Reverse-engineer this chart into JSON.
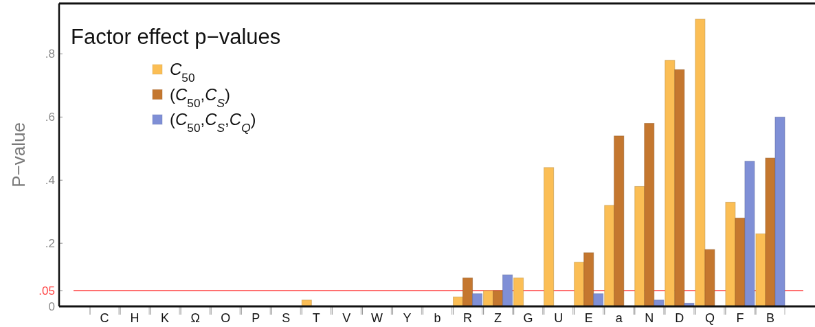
{
  "chart_data": {
    "type": "bar",
    "title": "Factor effect p−values",
    "ylabel": "P−value",
    "categories": [
      "C",
      "H",
      "K",
      "Ω",
      "O",
      "P",
      "S",
      "T",
      "V",
      "W",
      "Y",
      "b",
      "R",
      "Z",
      "G",
      "U",
      "E",
      "a",
      "N",
      "D",
      "Q",
      "F",
      "B"
    ],
    "series": [
      {
        "name": "C$_{50}$",
        "color": "#fbbe55",
        "values": [
          0,
          0,
          0,
          0,
          0,
          0,
          0,
          0.02,
          0,
          0,
          0,
          0,
          0.03,
          0.05,
          0.09,
          0.44,
          0.14,
          0.32,
          0.38,
          0.78,
          0.91,
          0.33,
          0.23
        ]
      },
      {
        "name": "(C$_{50}$,C$_{S}$)",
        "color": "#c4772f",
        "values": [
          0,
          0,
          0,
          0,
          0,
          0,
          0,
          0,
          0,
          0,
          0,
          0,
          0.09,
          0.05,
          0,
          0,
          0.17,
          0.54,
          0.58,
          0.75,
          0.18,
          0.28,
          0.47
        ]
      },
      {
        "name": "(C$_{50}$,C$_{S}$,C$_{Q}$)",
        "color": "#7f8fd6",
        "values": [
          0,
          0,
          0,
          0,
          0,
          0,
          0,
          0,
          0,
          0,
          0,
          0,
          0.04,
          0.1,
          0,
          0,
          0.04,
          0,
          0.02,
          0.01,
          0,
          0.46,
          0.6
        ]
      }
    ],
    "ylim": [
      0,
      0.96
    ],
    "yticks": [
      0,
      {
        "value": 0.2,
        "label": ".2"
      },
      {
        "value": 0.4,
        "label": ".4"
      },
      {
        "value": 0.6,
        "label": ".6"
      },
      {
        "value": 0.8,
        "label": ".8"
      }
    ],
    "ref_lines": [
      {
        "axis": "y",
        "value": 0.05,
        "label": ".05",
        "color": "#ff4040"
      }
    ],
    "legend": "top left"
  }
}
